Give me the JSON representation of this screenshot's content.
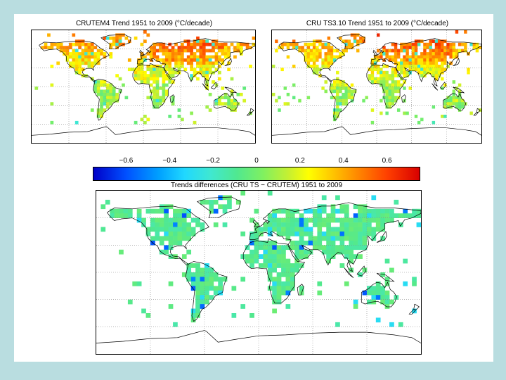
{
  "maps": [
    {
      "title": "CRUTEM4 Trend 1951 to 2009 (°C/decade)",
      "palette": "trend",
      "seed": 11
    },
    {
      "title": "CRU TS3.10 Trend 1951 to 2009 (°C/decade)",
      "palette": "trend",
      "seed": 23
    },
    {
      "title": "",
      "palette": "difference",
      "seed": 37
    }
  ],
  "colorbar": {
    "ticks": [
      "−0.6",
      "−0.4",
      "−0.2",
      "0",
      "0.2",
      "0.4",
      "0.6"
    ],
    "tick_values": [
      -0.6,
      -0.4,
      -0.2,
      0,
      0.2,
      0.4,
      0.6
    ],
    "range": [
      -0.75,
      0.75
    ],
    "label": "Trends differences (CRU TS − CRUTEM) 1951 to 2009"
  },
  "colors": {
    "background": "#b9dde0",
    "land_outline": "#000000",
    "grid": "#888888"
  }
}
